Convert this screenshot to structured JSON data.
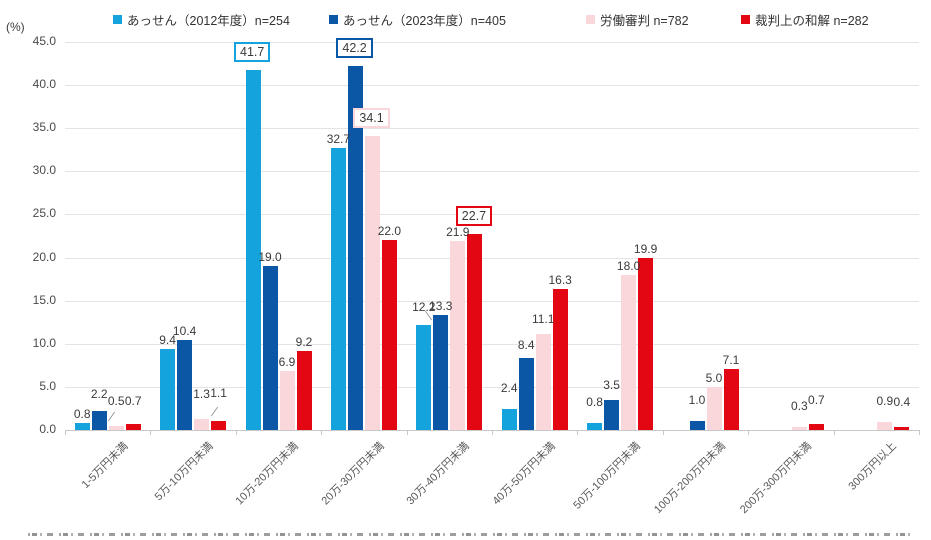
{
  "unit_label": "(%)",
  "chart_data": {
    "type": "bar",
    "title": "",
    "xlabel": "",
    "ylabel": "(%)",
    "ylim": [
      0,
      45
    ],
    "ytick_step": 5,
    "grid": true,
    "legend_position": "top",
    "categories": [
      "1-5万円未満",
      "5万-10万円未満",
      "10万-20万円未満",
      "20万-30万円未満",
      "30万-40万円未満",
      "40万-50万円未満",
      "50万-100万円未満",
      "100万-200万円未満",
      "200万-300万円未満",
      "300万円以上"
    ],
    "series": [
      {
        "name": "あっせん（2012年度）n=254",
        "color": "#14A3DD",
        "values": [
          0.8,
          9.4,
          41.7,
          32.7,
          12.2,
          2.4,
          0.8,
          null,
          null,
          null
        ]
      },
      {
        "name": "あっせん（2023年度）n=405",
        "color": "#0B57A6",
        "values": [
          2.2,
          10.4,
          19.0,
          42.2,
          13.3,
          8.4,
          3.5,
          1.0,
          null,
          null
        ]
      },
      {
        "name": "労働審判 n=782",
        "color": "#F9D7DB",
        "values": [
          0.5,
          1.3,
          6.9,
          34.1,
          21.9,
          11.1,
          18.0,
          5.0,
          0.3,
          0.9
        ]
      },
      {
        "name": "裁判上の和解 n=282",
        "color": "#E30613",
        "values": [
          0.7,
          1.1,
          9.2,
          22.0,
          22.7,
          16.3,
          19.9,
          7.1,
          0.7,
          0.4
        ]
      }
    ],
    "highlighted_labels": [
      {
        "series": 0,
        "category": 2,
        "value": 41.7
      },
      {
        "series": 1,
        "category": 3,
        "value": 42.2
      },
      {
        "series": 2,
        "category": 3,
        "value": 34.1
      },
      {
        "series": 3,
        "category": 4,
        "value": 22.7
      }
    ]
  },
  "colors": {
    "grid": "#E4E4E4",
    "axis": "#C8C8C8",
    "value_label": "#3B3B3B",
    "tick_label": "#595959"
  }
}
